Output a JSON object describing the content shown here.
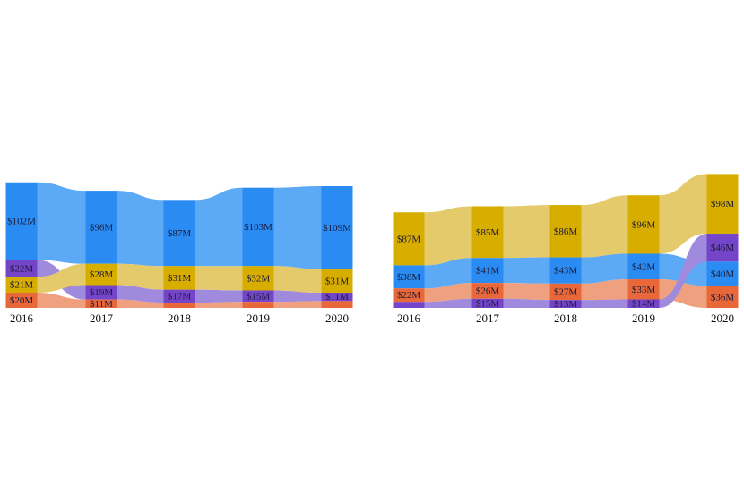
{
  "colors": {
    "blue": {
      "bar": "#2a8cf2",
      "flow": "#5ca9f6"
    },
    "purple": {
      "bar": "#7445c8",
      "flow": "#a08ade"
    },
    "yellow": {
      "bar": "#d7ae00",
      "flow": "#e5ca6b"
    },
    "orange": {
      "bar": "#e8683a",
      "flow": "#efa07f"
    }
  },
  "chart_data": [
    {
      "type": "sankey-bump",
      "categories": [
        "2016",
        "2017",
        "2018",
        "2019",
        "2020"
      ],
      "series": [
        {
          "color": "blue",
          "values": [
            102,
            96,
            87,
            103,
            109
          ],
          "labels": [
            "$102M",
            "$96M",
            "$87M",
            "$103M",
            "$109M"
          ]
        },
        {
          "color": "purple",
          "values": [
            22,
            19,
            17,
            15,
            11
          ],
          "labels": [
            "$22M",
            "$19M",
            "$17M",
            "$15M",
            "$11M"
          ]
        },
        {
          "color": "yellow",
          "values": [
            21,
            28,
            31,
            32,
            31
          ],
          "labels": [
            "$21M",
            "$28M",
            "$31M",
            "$32M",
            "$31M"
          ]
        },
        {
          "color": "orange",
          "values": [
            20,
            11,
            7,
            8,
            9
          ],
          "labels": [
            "$20M",
            "$11M",
            null,
            null,
            null
          ]
        }
      ]
    },
    {
      "type": "sankey-bump",
      "categories": [
        "2016",
        "2017",
        "2018",
        "2019",
        "2020"
      ],
      "series": [
        {
          "color": "yellow",
          "values": [
            87,
            85,
            86,
            96,
            98
          ],
          "labels": [
            "$87M",
            "$85M",
            "$86M",
            "$96M",
            "$98M"
          ]
        },
        {
          "color": "blue",
          "values": [
            38,
            41,
            43,
            42,
            40
          ],
          "labels": [
            "$38M",
            "$41M",
            "$43M",
            "$42M",
            "$40M"
          ]
        },
        {
          "color": "orange",
          "values": [
            22,
            26,
            27,
            33,
            36
          ],
          "labels": [
            "$22M",
            "$26M",
            "$27M",
            "$33M",
            "$36M"
          ]
        },
        {
          "color": "purple",
          "values": [
            10,
            15,
            13,
            14,
            46
          ],
          "labels": [
            null,
            "$15M",
            "$13M",
            "$14M",
            "$46M"
          ]
        }
      ]
    }
  ]
}
